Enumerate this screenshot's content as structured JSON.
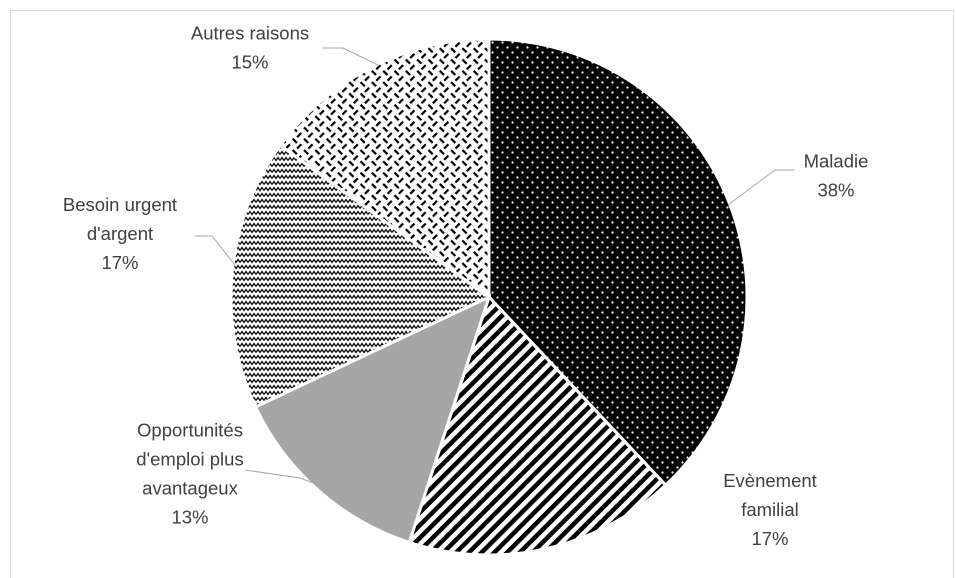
{
  "chart_data": {
    "type": "pie",
    "title": "",
    "start_angle_deg": 0,
    "direction": "clockwise",
    "slices": [
      {
        "label_lines": [
          "Maladie"
        ],
        "value_label": "38%",
        "value": 38,
        "fill": "#000000",
        "pattern": "white-dots"
      },
      {
        "label_lines": [
          "Evènement",
          "familial"
        ],
        "value_label": "17%",
        "value": 17,
        "fill": "#ffffff",
        "pattern": "diagonal-stripes"
      },
      {
        "label_lines": [
          "Opportunités",
          "d'emploi plus",
          "avantageux"
        ],
        "value_label": "13%",
        "value": 13,
        "fill": "#a6a6a6",
        "pattern": "solid"
      },
      {
        "label_lines": [
          "Besoin urgent",
          "d'argent"
        ],
        "value_label": "17%",
        "value": 17,
        "fill": "#ffffff",
        "pattern": "zigzag"
      },
      {
        "label_lines": [
          "Autres raisons"
        ],
        "value_label": "15%",
        "value": 15,
        "fill": "#ffffff",
        "pattern": "weave"
      }
    ],
    "legend": "none",
    "leader_line_color": "#a6a6a6",
    "label_color": "#404040"
  }
}
